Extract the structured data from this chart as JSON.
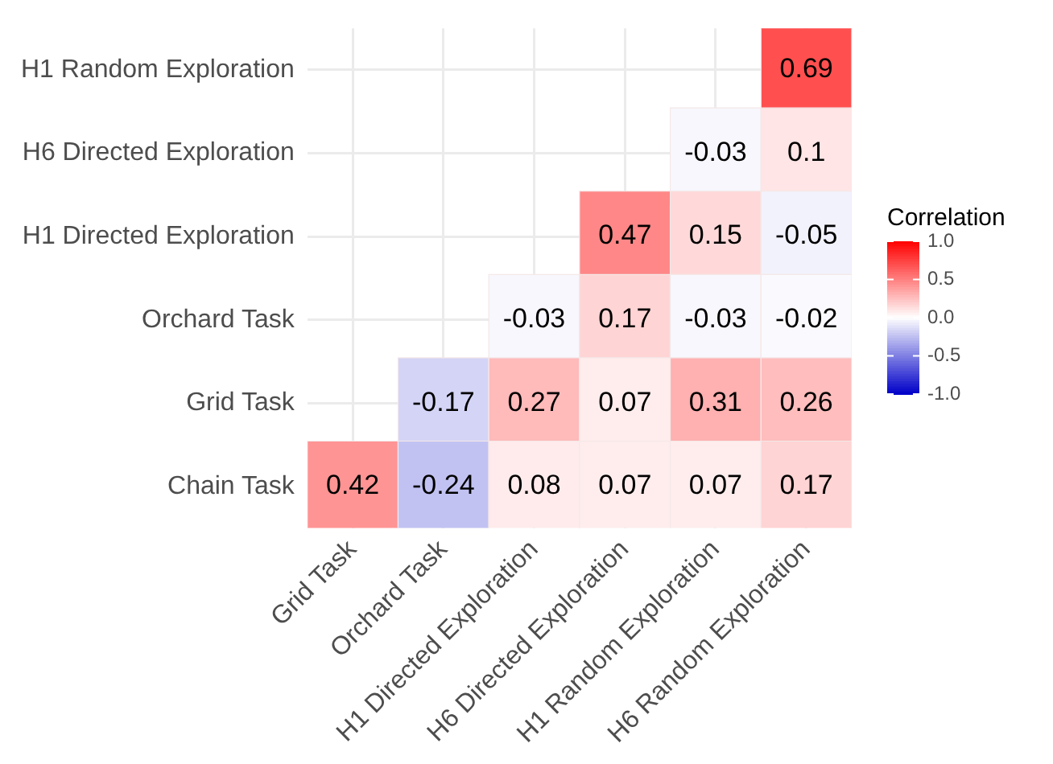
{
  "chart_data": {
    "type": "heatmap",
    "clabel": "Correlation",
    "categories": [
      "Grid Task",
      "Orchard Task",
      "H1 Directed Exploration",
      "H6 Directed Exploration",
      "H1 Random Exploration",
      "H6 Random Exploration"
    ],
    "y_categories": [
      "H1 Random Exploration",
      "H6 Directed Exploration",
      "H1 Directed Exploration",
      "Orchard Task",
      "Grid Task",
      "Chain Task"
    ],
    "cells": [
      [
        null,
        null,
        null,
        null,
        null,
        0.69
      ],
      [
        null,
        null,
        null,
        null,
        -0.03,
        0.1
      ],
      [
        null,
        null,
        null,
        0.47,
        0.15,
        -0.05
      ],
      [
        null,
        null,
        -0.03,
        0.17,
        -0.03,
        -0.02
      ],
      [
        null,
        -0.17,
        0.27,
        0.07,
        0.31,
        0.26
      ],
      [
        0.42,
        -0.24,
        0.08,
        0.07,
        0.07,
        0.17
      ]
    ],
    "clim": [
      -1,
      1
    ],
    "cticks": [
      {
        "value": 1,
        "label": "1.0"
      },
      {
        "value": 0.5,
        "label": "0.5"
      },
      {
        "value": 0,
        "label": "0.0"
      },
      {
        "value": -0.5,
        "label": "-0.5"
      },
      {
        "value": -1,
        "label": "-1.0"
      }
    ],
    "grid": true,
    "data_labels": true
  }
}
